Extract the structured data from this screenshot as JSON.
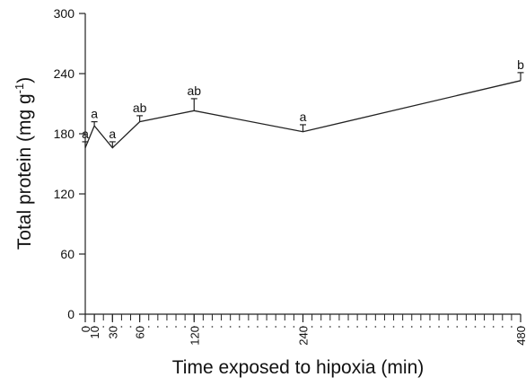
{
  "chart_data": {
    "type": "line",
    "xlabel": "Time exposed to hipoxia (min)",
    "ylabel": "Total protein (mg g",
    "ylabel_superscript": "-1",
    "ylabel_close": ")",
    "ylim": [
      0,
      300
    ],
    "xlim": [
      0,
      480
    ],
    "yticks": [
      0,
      60,
      120,
      180,
      240,
      300
    ],
    "xticks": [
      0,
      10,
      30,
      60,
      120,
      240,
      480
    ],
    "xtick_labels": [
      "0",
      "10",
      "30",
      "60",
      "120",
      "240",
      "480"
    ],
    "x_minor_step": 10,
    "grid": false,
    "legend": "none",
    "series": [
      {
        "x": [
          0,
          10,
          30,
          60,
          120,
          240,
          480
        ],
        "y": [
          166,
          188,
          166,
          192,
          203,
          182,
          233
        ],
        "error_upper": [
          6,
          4,
          6,
          6,
          12,
          7,
          8
        ],
        "labels": [
          "a",
          "a",
          "a",
          "ab",
          "ab",
          "a",
          "b"
        ]
      }
    ]
  }
}
